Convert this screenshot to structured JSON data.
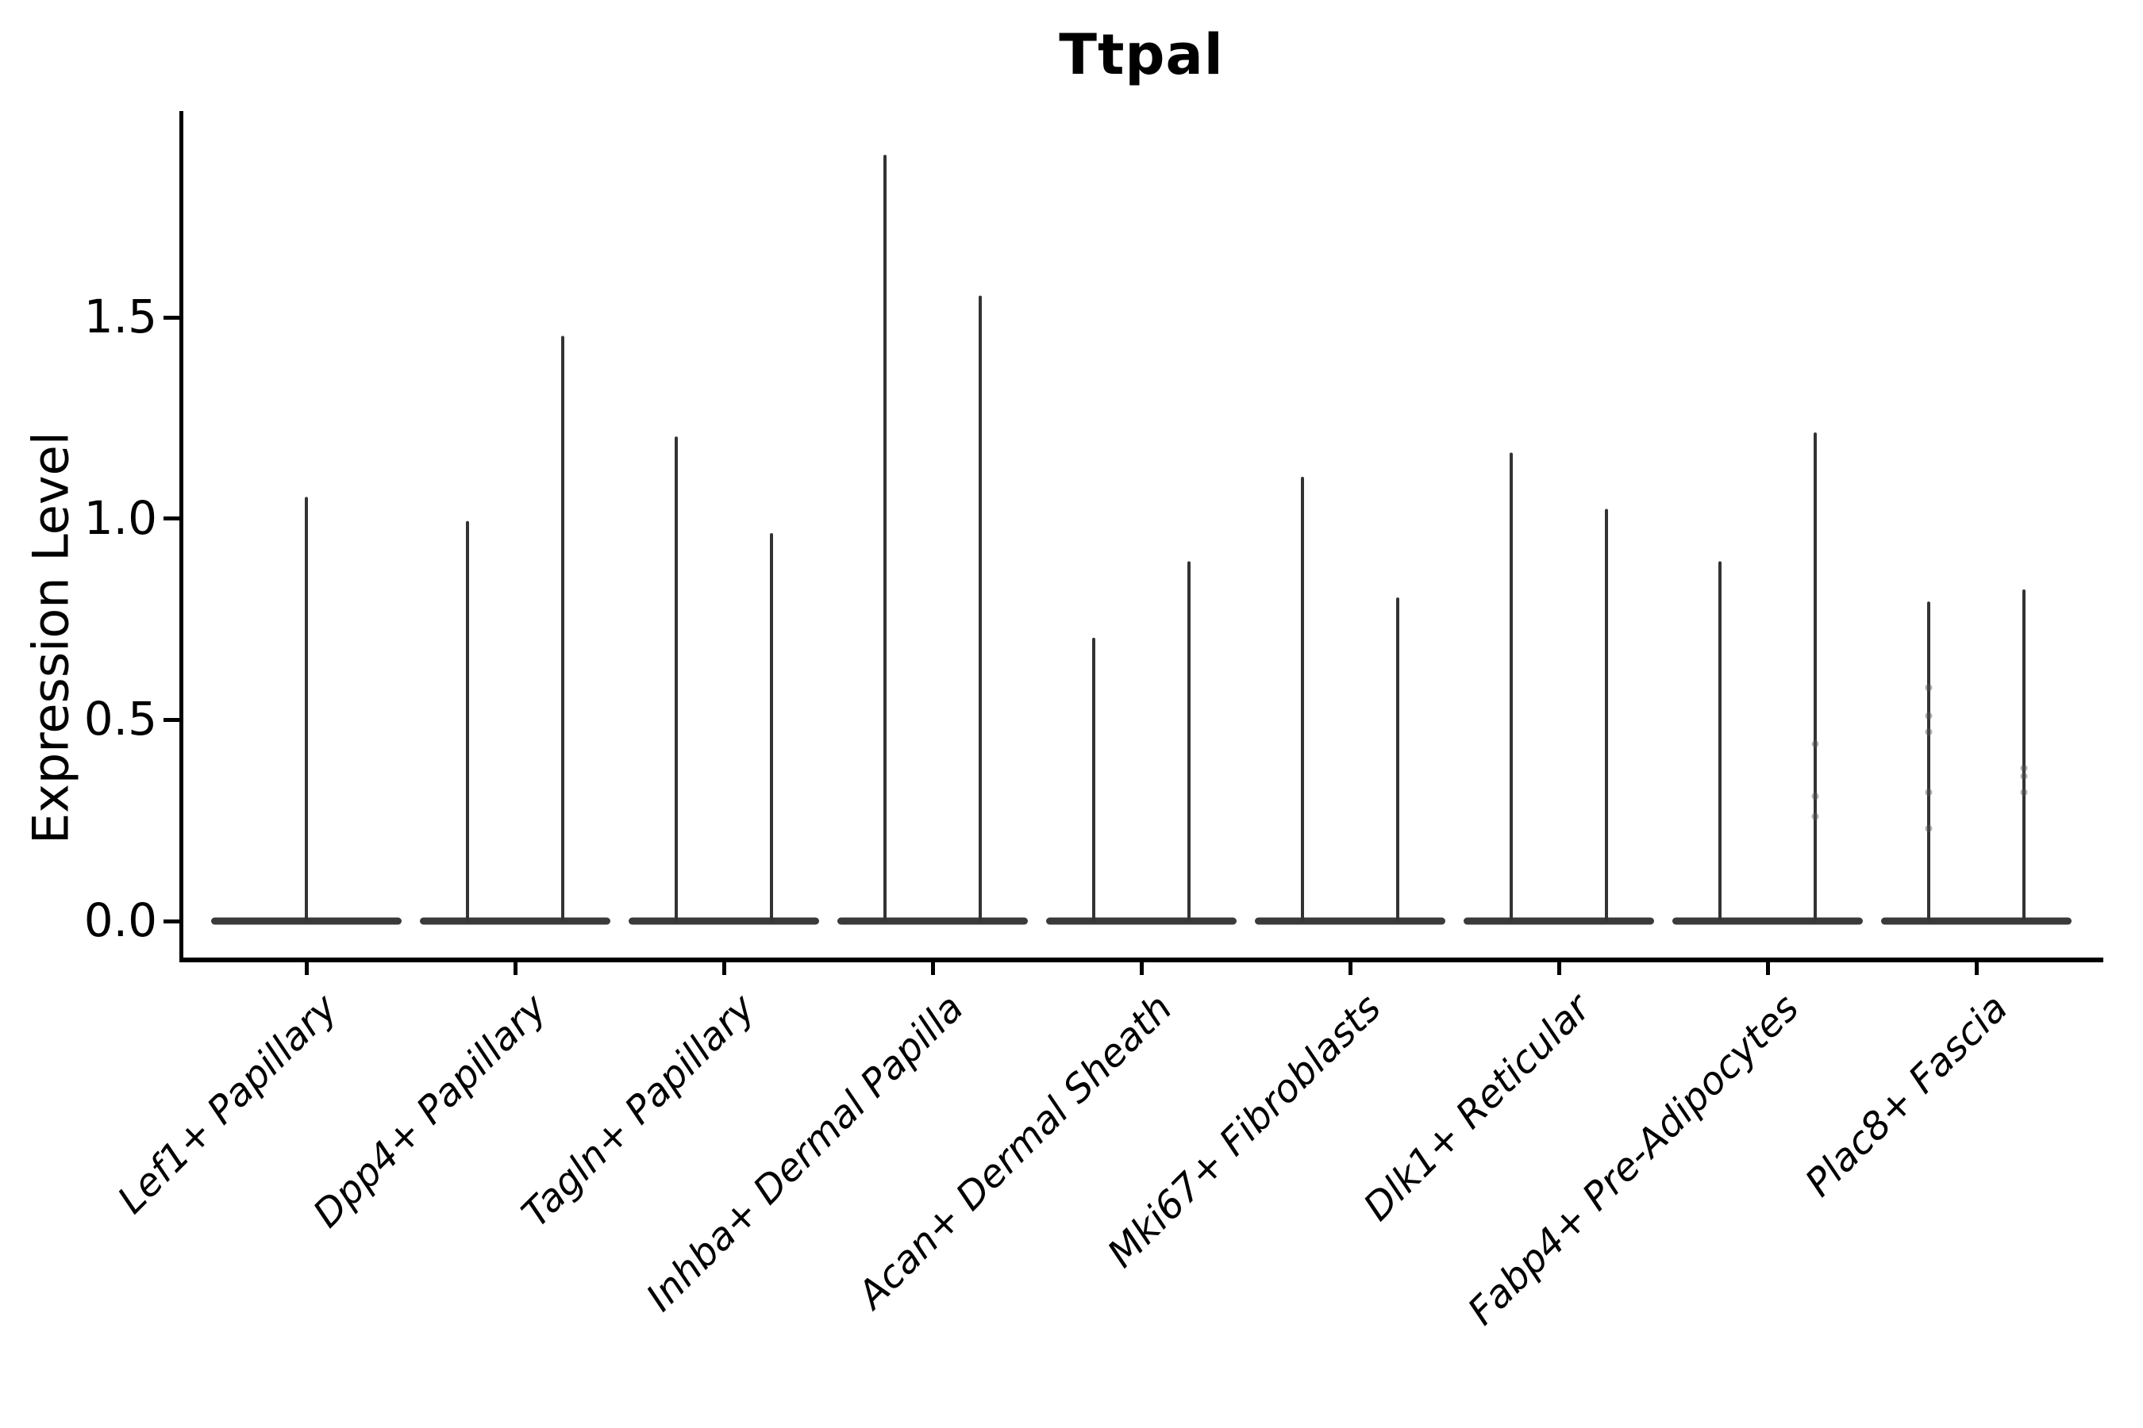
{
  "chart_data": {
    "type": "violin",
    "title": "Ttpal",
    "ylabel": "Expression Level",
    "xlabel": "",
    "grid": false,
    "legend": null,
    "ylim": [
      -0.1,
      2.0
    ],
    "ytick_values": [
      0.0,
      0.5,
      1.0,
      1.5
    ],
    "ytick_labels": [
      "0.0",
      "0.5",
      "1.0",
      "1.5"
    ],
    "baseline_value": 0.0,
    "categories": [
      "Lef1+ Papillary",
      "Dpp4+ Papillary",
      "Tagln+ Papillary",
      "Inhba+ Dermal Papilla",
      "Acan+ Dermal Sheath",
      "Mki67+ Fibroblasts",
      "Dlk1+ Reticular",
      "Fabp4+ Pre-Adipocytes",
      "Plac8+ Fascia"
    ],
    "violins": [
      {
        "category": "Lef1+ Papillary",
        "spikes": [
          {
            "pos": "center",
            "max": 1.05
          }
        ]
      },
      {
        "category": "Dpp4+ Papillary",
        "spikes": [
          {
            "pos": "left",
            "max": 0.99
          },
          {
            "pos": "right",
            "max": 1.45
          }
        ]
      },
      {
        "category": "Tagln+ Papillary",
        "spikes": [
          {
            "pos": "left",
            "max": 1.2
          },
          {
            "pos": "right",
            "max": 0.96
          }
        ]
      },
      {
        "category": "Inhba+ Dermal Papilla",
        "spikes": [
          {
            "pos": "left",
            "max": 1.9
          },
          {
            "pos": "right",
            "max": 1.55
          }
        ]
      },
      {
        "category": "Acan+ Dermal Sheath",
        "spikes": [
          {
            "pos": "left",
            "max": 0.7
          },
          {
            "pos": "right",
            "max": 0.89
          }
        ]
      },
      {
        "category": "Mki67+ Fibroblasts",
        "spikes": [
          {
            "pos": "left",
            "max": 1.1
          },
          {
            "pos": "right",
            "max": 0.8
          }
        ]
      },
      {
        "category": "Dlk1+ Reticular",
        "spikes": [
          {
            "pos": "left",
            "max": 1.16
          },
          {
            "pos": "right",
            "max": 1.02
          }
        ]
      },
      {
        "category": "Fabp4+ Pre-Adipocytes",
        "spikes": [
          {
            "pos": "left",
            "max": 0.89
          },
          {
            "pos": "right",
            "max": 1.21
          }
        ]
      },
      {
        "category": "Plac8+ Fascia",
        "spikes": [
          {
            "pos": "left",
            "max": 0.79
          },
          {
            "pos": "right",
            "max": 0.82
          }
        ]
      }
    ],
    "jitter_points": [
      {
        "category_index": 7,
        "pos": "right",
        "values": [
          0.44,
          0.31,
          0.26
        ]
      },
      {
        "category_index": 8,
        "pos": "left",
        "values": [
          0.58,
          0.51,
          0.47,
          0.32,
          0.23
        ]
      },
      {
        "category_index": 8,
        "pos": "right",
        "values": [
          0.38,
          0.36,
          0.32
        ]
      }
    ],
    "colors": {
      "spike": "#333333",
      "violin_base": "#3a3a3a",
      "axis": "#000000",
      "jitter": "#555555",
      "background": "#ffffff"
    }
  }
}
